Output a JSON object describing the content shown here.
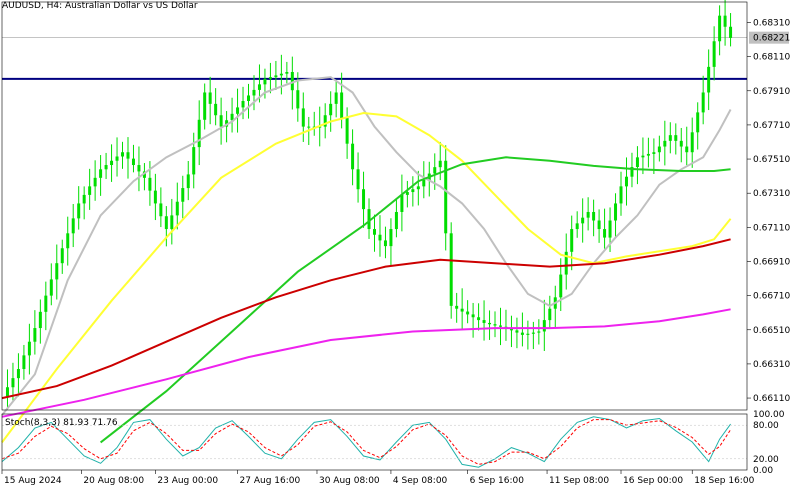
{
  "header": {
    "title": "AUDUSD, H4:  Australian Dollar vs US Dollar"
  },
  "colors": {
    "background": "#ffffff",
    "candle": "#00dd00",
    "ma_silver": "#c0c0c0",
    "ma_yellow": "#ffff33",
    "ma_green": "#22cc22",
    "ma_red": "#cc0000",
    "ma_magenta": "#ee22ee",
    "resistance": "#000080",
    "stoch_main": "#20b2aa",
    "stoch_signal": "#ff0000",
    "axis_text": "#000000",
    "price_tag": "#c0c0c0"
  },
  "chart_data": {
    "type": "line",
    "symbol": "AUDUSD",
    "timeframe": "H4",
    "y_axis": {
      "ticks": [
        "0.68310",
        "0.68110",
        "0.67910",
        "0.67710",
        "0.67510",
        "0.67310",
        "0.67110",
        "0.66910",
        "0.66710",
        "0.66510",
        "0.66310",
        "0.66110"
      ],
      "ylim": [
        0.6604,
        0.6843
      ]
    },
    "x_axis": {
      "ticks": [
        "15 Aug 2024",
        "20 Aug 08:00",
        "23 Aug 00:00",
        "27 Aug 16:00",
        "30 Aug 08:00",
        "4 Sep 08:00",
        "6 Sep 16:00",
        "11 Sep 08:00",
        "16 Sep 00:00",
        "18 Sep 16:00"
      ]
    },
    "current_price": "0.68221",
    "resistance_level": 0.6798,
    "price_points": [
      {
        "t": 0,
        "y": 0.6612
      },
      {
        "t": 3,
        "y": 0.6628
      },
      {
        "t": 6,
        "y": 0.6652
      },
      {
        "t": 10,
        "y": 0.669
      },
      {
        "t": 14,
        "y": 0.6725
      },
      {
        "t": 18,
        "y": 0.6745
      },
      {
        "t": 22,
        "y": 0.6755
      },
      {
        "t": 26,
        "y": 0.674
      },
      {
        "t": 30,
        "y": 0.671
      },
      {
        "t": 34,
        "y": 0.6742
      },
      {
        "t": 37,
        "y": 0.679
      },
      {
        "t": 40,
        "y": 0.677
      },
      {
        "t": 44,
        "y": 0.6785
      },
      {
        "t": 48,
        "y": 0.6798
      },
      {
        "t": 52,
        "y": 0.6802
      },
      {
        "t": 55,
        "y": 0.677
      },
      {
        "t": 58,
        "y": 0.677
      },
      {
        "t": 61,
        "y": 0.679
      },
      {
        "t": 64,
        "y": 0.6745
      },
      {
        "t": 67,
        "y": 0.671
      },
      {
        "t": 70,
        "y": 0.67
      },
      {
        "t": 73,
        "y": 0.673
      },
      {
        "t": 76,
        "y": 0.6735
      },
      {
        "t": 80,
        "y": 0.675
      },
      {
        "t": 82,
        "y": 0.6665
      },
      {
        "t": 85,
        "y": 0.666
      },
      {
        "t": 88,
        "y": 0.6655
      },
      {
        "t": 92,
        "y": 0.6652
      },
      {
        "t": 95,
        "y": 0.6648
      },
      {
        "t": 98,
        "y": 0.665
      },
      {
        "t": 101,
        "y": 0.667
      },
      {
        "t": 104,
        "y": 0.671
      },
      {
        "t": 107,
        "y": 0.672
      },
      {
        "t": 110,
        "y": 0.6705
      },
      {
        "t": 113,
        "y": 0.6735
      },
      {
        "t": 116,
        "y": 0.6752
      },
      {
        "t": 119,
        "y": 0.6755
      },
      {
        "t": 122,
        "y": 0.6765
      },
      {
        "t": 125,
        "y": 0.6755
      },
      {
        "t": 128,
        "y": 0.679
      },
      {
        "t": 131,
        "y": 0.6835
      },
      {
        "t": 133,
        "y": 0.6822
      }
    ],
    "series": [
      {
        "values": [
          {
            "t": 0,
            "y": 0.6601
          },
          {
            "t": 6,
            "y": 0.6625
          },
          {
            "t": 12,
            "y": 0.668
          },
          {
            "t": 18,
            "y": 0.6718
          },
          {
            "t": 24,
            "y": 0.6738
          },
          {
            "t": 30,
            "y": 0.6752
          },
          {
            "t": 36,
            "y": 0.6762
          },
          {
            "t": 42,
            "y": 0.6773
          },
          {
            "t": 48,
            "y": 0.679
          },
          {
            "t": 54,
            "y": 0.6797
          },
          {
            "t": 60,
            "y": 0.6799
          },
          {
            "t": 64,
            "y": 0.679
          },
          {
            "t": 68,
            "y": 0.677
          },
          {
            "t": 72,
            "y": 0.6755
          },
          {
            "t": 76,
            "y": 0.6742
          },
          {
            "t": 80,
            "y": 0.6735
          },
          {
            "t": 84,
            "y": 0.6725
          },
          {
            "t": 88,
            "y": 0.671
          },
          {
            "t": 92,
            "y": 0.669
          },
          {
            "t": 96,
            "y": 0.6672
          },
          {
            "t": 100,
            "y": 0.6665
          },
          {
            "t": 104,
            "y": 0.6672
          },
          {
            "t": 108,
            "y": 0.669
          },
          {
            "t": 112,
            "y": 0.6705
          },
          {
            "t": 116,
            "y": 0.6718
          },
          {
            "t": 120,
            "y": 0.6736
          },
          {
            "t": 124,
            "y": 0.6745
          },
          {
            "t": 128,
            "y": 0.6752
          },
          {
            "t": 131,
            "y": 0.6768
          },
          {
            "t": 133,
            "y": 0.678
          }
        ]
      },
      {
        "values": [
          {
            "t": 0,
            "y": 0.6585
          },
          {
            "t": 10,
            "y": 0.6628
          },
          {
            "t": 20,
            "y": 0.6668
          },
          {
            "t": 30,
            "y": 0.6705
          },
          {
            "t": 40,
            "y": 0.674
          },
          {
            "t": 50,
            "y": 0.676
          },
          {
            "t": 60,
            "y": 0.6773
          },
          {
            "t": 66,
            "y": 0.6778
          },
          {
            "t": 72,
            "y": 0.6776
          },
          {
            "t": 78,
            "y": 0.6765
          },
          {
            "t": 84,
            "y": 0.675
          },
          {
            "t": 90,
            "y": 0.673
          },
          {
            "t": 96,
            "y": 0.671
          },
          {
            "t": 102,
            "y": 0.6695
          },
          {
            "t": 108,
            "y": 0.669
          },
          {
            "t": 114,
            "y": 0.6694
          },
          {
            "t": 120,
            "y": 0.6697
          },
          {
            "t": 126,
            "y": 0.67
          },
          {
            "t": 130,
            "y": 0.6704
          },
          {
            "t": 133,
            "y": 0.6716
          }
        ]
      },
      {
        "values": [
          {
            "t": 18,
            "y": 0.6585
          },
          {
            "t": 30,
            "y": 0.6615
          },
          {
            "t": 42,
            "y": 0.665
          },
          {
            "t": 54,
            "y": 0.6685
          },
          {
            "t": 66,
            "y": 0.6712
          },
          {
            "t": 76,
            "y": 0.6738
          },
          {
            "t": 84,
            "y": 0.6748
          },
          {
            "t": 92,
            "y": 0.6752
          },
          {
            "t": 100,
            "y": 0.675
          },
          {
            "t": 108,
            "y": 0.6747
          },
          {
            "t": 116,
            "y": 0.6745
          },
          {
            "t": 124,
            "y": 0.6744
          },
          {
            "t": 130,
            "y": 0.6744
          },
          {
            "t": 133,
            "y": 0.6745
          }
        ]
      },
      {
        "values": [
          {
            "t": 0,
            "y": 0.6611
          },
          {
            "t": 10,
            "y": 0.6618
          },
          {
            "t": 20,
            "y": 0.663
          },
          {
            "t": 30,
            "y": 0.6644
          },
          {
            "t": 40,
            "y": 0.6658
          },
          {
            "t": 50,
            "y": 0.667
          },
          {
            "t": 60,
            "y": 0.668
          },
          {
            "t": 70,
            "y": 0.6688
          },
          {
            "t": 80,
            "y": 0.6692
          },
          {
            "t": 90,
            "y": 0.669
          },
          {
            "t": 100,
            "y": 0.6688
          },
          {
            "t": 110,
            "y": 0.669
          },
          {
            "t": 120,
            "y": 0.6695
          },
          {
            "t": 128,
            "y": 0.67
          },
          {
            "t": 133,
            "y": 0.6704
          }
        ]
      },
      {
        "values": [
          {
            "t": 0,
            "y": 0.66
          },
          {
            "t": 15,
            "y": 0.661
          },
          {
            "t": 30,
            "y": 0.6622
          },
          {
            "t": 45,
            "y": 0.6635
          },
          {
            "t": 60,
            "y": 0.6645
          },
          {
            "t": 75,
            "y": 0.665
          },
          {
            "t": 90,
            "y": 0.6652
          },
          {
            "t": 100,
            "y": 0.6652
          },
          {
            "t": 110,
            "y": 0.6653
          },
          {
            "t": 120,
            "y": 0.6656
          },
          {
            "t": 128,
            "y": 0.666
          },
          {
            "t": 133,
            "y": 0.6663
          }
        ]
      }
    ],
    "stochastic": {
      "label": "Stoch(8,3,3) 81.93 71.76",
      "ticks": [
        "100.00",
        "80.00",
        "20.00",
        "0.00"
      ],
      "ylim": [
        0,
        100
      ],
      "main": [
        {
          "t": 0,
          "y": 15
        },
        {
          "t": 3,
          "y": 40
        },
        {
          "t": 6,
          "y": 75
        },
        {
          "t": 9,
          "y": 85
        },
        {
          "t": 12,
          "y": 55
        },
        {
          "t": 15,
          "y": 25
        },
        {
          "t": 18,
          "y": 12
        },
        {
          "t": 21,
          "y": 40
        },
        {
          "t": 24,
          "y": 85
        },
        {
          "t": 27,
          "y": 90
        },
        {
          "t": 30,
          "y": 55
        },
        {
          "t": 33,
          "y": 25
        },
        {
          "t": 36,
          "y": 40
        },
        {
          "t": 39,
          "y": 75
        },
        {
          "t": 42,
          "y": 88
        },
        {
          "t": 45,
          "y": 60
        },
        {
          "t": 48,
          "y": 30
        },
        {
          "t": 51,
          "y": 20
        },
        {
          "t": 54,
          "y": 55
        },
        {
          "t": 57,
          "y": 85
        },
        {
          "t": 60,
          "y": 90
        },
        {
          "t": 63,
          "y": 60
        },
        {
          "t": 66,
          "y": 25
        },
        {
          "t": 69,
          "y": 18
        },
        {
          "t": 72,
          "y": 50
        },
        {
          "t": 75,
          "y": 80
        },
        {
          "t": 78,
          "y": 85
        },
        {
          "t": 81,
          "y": 55
        },
        {
          "t": 84,
          "y": 10
        },
        {
          "t": 87,
          "y": 5
        },
        {
          "t": 90,
          "y": 20
        },
        {
          "t": 93,
          "y": 40
        },
        {
          "t": 96,
          "y": 30
        },
        {
          "t": 99,
          "y": 15
        },
        {
          "t": 102,
          "y": 55
        },
        {
          "t": 105,
          "y": 85
        },
        {
          "t": 108,
          "y": 95
        },
        {
          "t": 111,
          "y": 90
        },
        {
          "t": 114,
          "y": 75
        },
        {
          "t": 117,
          "y": 88
        },
        {
          "t": 120,
          "y": 92
        },
        {
          "t": 123,
          "y": 70
        },
        {
          "t": 126,
          "y": 50
        },
        {
          "t": 129,
          "y": 15
        },
        {
          "t": 131,
          "y": 55
        },
        {
          "t": 133,
          "y": 82
        }
      ],
      "signal": [
        {
          "t": 0,
          "y": 20
        },
        {
          "t": 3,
          "y": 30
        },
        {
          "t": 6,
          "y": 60
        },
        {
          "t": 9,
          "y": 78
        },
        {
          "t": 12,
          "y": 65
        },
        {
          "t": 15,
          "y": 38
        },
        {
          "t": 18,
          "y": 20
        },
        {
          "t": 21,
          "y": 30
        },
        {
          "t": 24,
          "y": 70
        },
        {
          "t": 27,
          "y": 85
        },
        {
          "t": 30,
          "y": 65
        },
        {
          "t": 33,
          "y": 35
        },
        {
          "t": 36,
          "y": 35
        },
        {
          "t": 39,
          "y": 65
        },
        {
          "t": 42,
          "y": 82
        },
        {
          "t": 45,
          "y": 68
        },
        {
          "t": 48,
          "y": 40
        },
        {
          "t": 51,
          "y": 25
        },
        {
          "t": 54,
          "y": 45
        },
        {
          "t": 57,
          "y": 78
        },
        {
          "t": 60,
          "y": 86
        },
        {
          "t": 63,
          "y": 68
        },
        {
          "t": 66,
          "y": 35
        },
        {
          "t": 69,
          "y": 22
        },
        {
          "t": 72,
          "y": 42
        },
        {
          "t": 75,
          "y": 72
        },
        {
          "t": 78,
          "y": 82
        },
        {
          "t": 81,
          "y": 62
        },
        {
          "t": 84,
          "y": 25
        },
        {
          "t": 87,
          "y": 10
        },
        {
          "t": 90,
          "y": 15
        },
        {
          "t": 93,
          "y": 32
        },
        {
          "t": 96,
          "y": 32
        },
        {
          "t": 99,
          "y": 20
        },
        {
          "t": 102,
          "y": 42
        },
        {
          "t": 105,
          "y": 75
        },
        {
          "t": 108,
          "y": 90
        },
        {
          "t": 111,
          "y": 90
        },
        {
          "t": 114,
          "y": 80
        },
        {
          "t": 117,
          "y": 84
        },
        {
          "t": 120,
          "y": 88
        },
        {
          "t": 123,
          "y": 76
        },
        {
          "t": 126,
          "y": 58
        },
        {
          "t": 129,
          "y": 28
        },
        {
          "t": 131,
          "y": 42
        },
        {
          "t": 133,
          "y": 72
        }
      ]
    }
  }
}
